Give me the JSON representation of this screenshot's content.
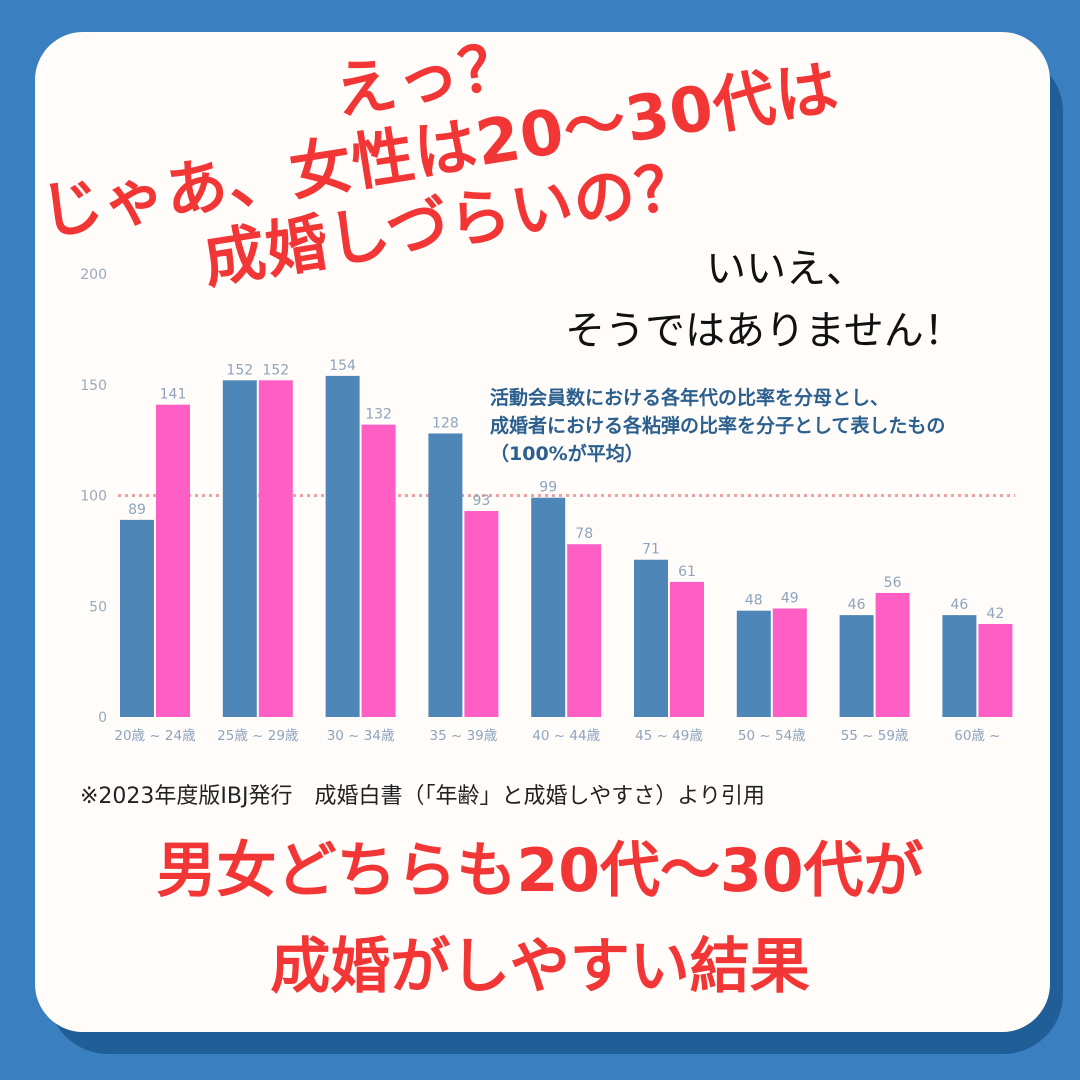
{
  "headline": {
    "line1": "えっ？",
    "line2": "じゃあ、女性は20〜30代は",
    "line3": "成婚しづらいの？"
  },
  "answer": {
    "line1": "いいえ、",
    "line2": "そうではありません！"
  },
  "note": {
    "line1": "活動会員数における各年代の比率を分母とし、",
    "line2": "成婚者における各粘弾の比率を分子として表したもの",
    "line3": "（100%が平均）"
  },
  "citation": "※2023年度版IBJ発行　成婚白書（「年齢」と成婚しやすさ）より引用",
  "conclusion": {
    "line1": "男女どちらも20代〜30代が",
    "line2": "成婚がしやすい結果"
  },
  "colors": {
    "background": "#3a7fc0",
    "card": "#fffcfa",
    "headline": "#f23535",
    "series_blue": "#4e86b8",
    "series_pink": "#ff5fc4",
    "reference_line": "#f0a0a0"
  },
  "chart_data": {
    "type": "bar",
    "categories": [
      "20歳 ~ 24歳",
      "25歳 ~ 29歳",
      "30 ~ 34歳",
      "35 ~ 39歳",
      "40 ~ 44歳",
      "45 ~ 49歳",
      "50 ~ 54歳",
      "55 ~ 59歳",
      "60歳 ~"
    ],
    "series": [
      {
        "color": "#4e86b8",
        "values": [
          89,
          152,
          154,
          128,
          99,
          71,
          48,
          46,
          46
        ]
      },
      {
        "color": "#ff5fc4",
        "values": [
          141,
          152,
          132,
          93,
          78,
          61,
          49,
          56,
          42
        ]
      }
    ],
    "yticks": [
      0,
      50,
      100,
      150,
      200
    ],
    "ylim": [
      0,
      200
    ],
    "reference_line": 100,
    "grid": false,
    "legend": "none"
  }
}
